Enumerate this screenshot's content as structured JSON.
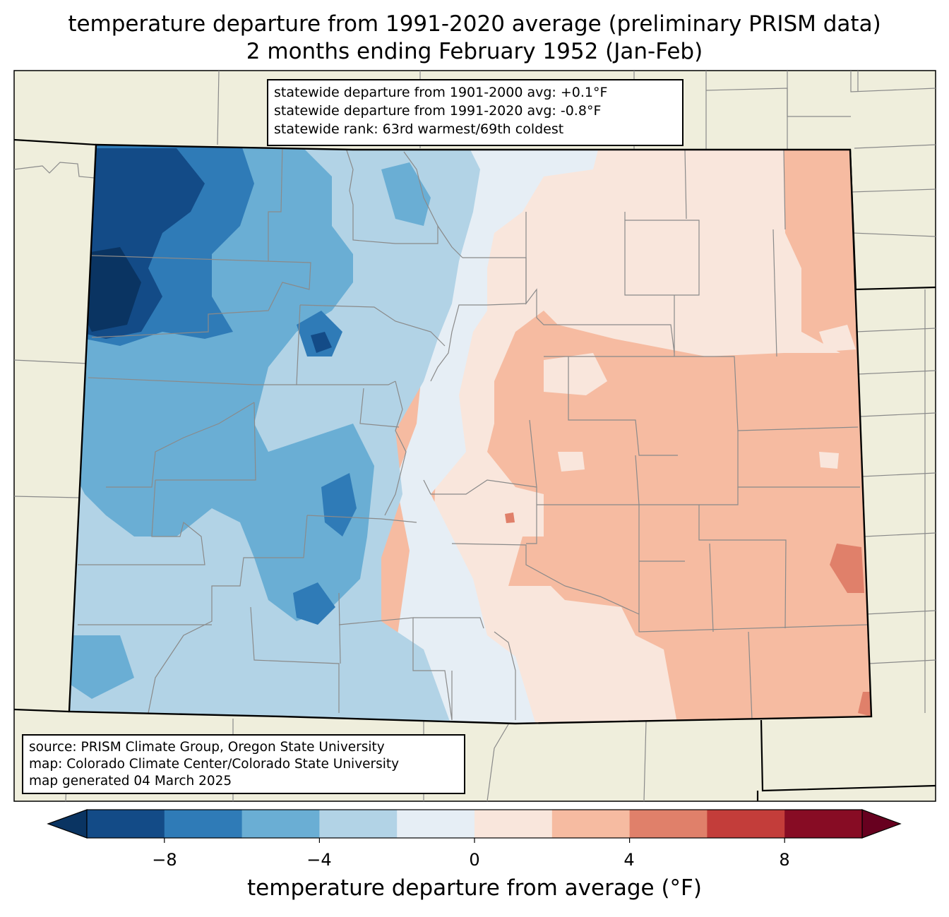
{
  "title": {
    "line1": "temperature departure from 1991-2020 average (preliminary PRISM data)",
    "line2": "2 months ending February 1952 (Jan-Feb)"
  },
  "stats": {
    "line1": "statewide departure from 1901-2000 avg: +0.1°F",
    "line2": "statewide departure from 1991-2020 avg: -0.8°F",
    "line3": "statewide rank: 63rd warmest/69th coldest"
  },
  "source": {
    "line1": "source: PRISM Climate Group, Oregon State University",
    "line2": "map: Colorado Climate Center/Colorado State University",
    "line3": "map generated 04 March 2025"
  },
  "colorbar": {
    "label": "temperature departure from average (°F)",
    "ticks": [
      "−8",
      "−4",
      "0",
      "4",
      "8"
    ],
    "bins": [
      {
        "range": "-10 to -8",
        "color": "#134b87"
      },
      {
        "range": "-8 to -6",
        "color": "#2f7bb7"
      },
      {
        "range": "-6 to -4",
        "color": "#6aaed4"
      },
      {
        "range": "-4 to -2",
        "color": "#b2d3e6"
      },
      {
        "range": "-2 to 0",
        "color": "#e6eef5"
      },
      {
        "range": "0 to 2",
        "color": "#f9e6dc"
      },
      {
        "range": "2 to 4",
        "color": "#f6bba1"
      },
      {
        "range": "4 to 6",
        "color": "#e0806a"
      },
      {
        "range": "6 to 8",
        "color": "#c33d3a"
      },
      {
        "range": "8 to 10",
        "color": "#870c24"
      }
    ],
    "under_color": "#0a3462",
    "over_color": "#67001f"
  },
  "colors": {
    "land": "#efeedc",
    "county_line": "#8a8a8a",
    "state_line": "#000000"
  }
}
